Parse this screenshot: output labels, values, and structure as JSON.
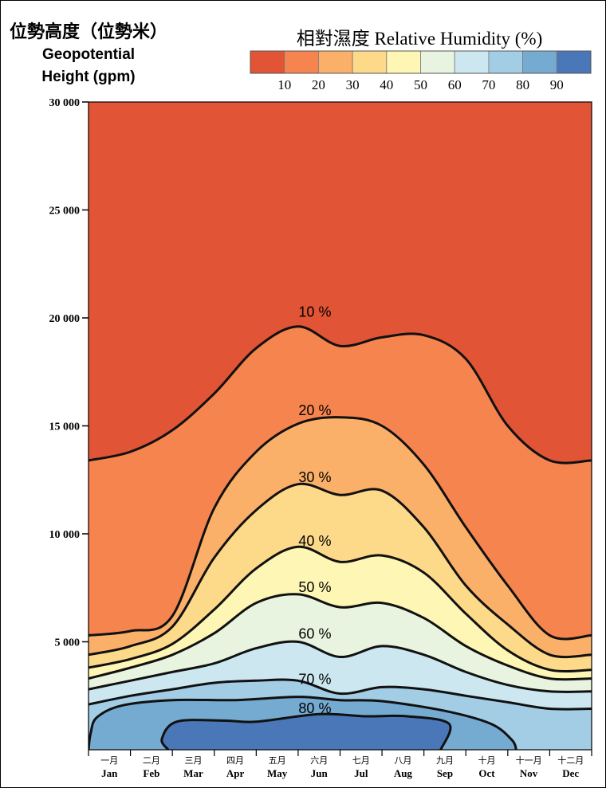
{
  "chart_data": {
    "type": "heatmap",
    "title": "相對濕度 Relative Humidity (%)",
    "ylabel_zh": "位勢高度（位勢米）",
    "ylabel_en_1": "Geopotential",
    "ylabel_en_2": "Height (gpm)",
    "ylim": [
      0,
      30000
    ],
    "y_ticks": [
      {
        "value": 5000,
        "label": "5 000"
      },
      {
        "value": 10000,
        "label": "10 000"
      },
      {
        "value": 15000,
        "label": "15 000"
      },
      {
        "value": 20000,
        "label": "20 000"
      },
      {
        "value": 25000,
        "label": "25 000"
      },
      {
        "value": 30000,
        "label": "30 000"
      }
    ],
    "months": [
      {
        "zh": "一月",
        "en": "Jan"
      },
      {
        "zh": "二月",
        "en": "Feb"
      },
      {
        "zh": "三月",
        "en": "Mar"
      },
      {
        "zh": "四月",
        "en": "Apr"
      },
      {
        "zh": "五月",
        "en": "May"
      },
      {
        "zh": "六月",
        "en": "Jun"
      },
      {
        "zh": "七月",
        "en": "Jul"
      },
      {
        "zh": "八月",
        "en": "Aug"
      },
      {
        "zh": "九月",
        "en": "Sep"
      },
      {
        "zh": "十月",
        "en": "Oct"
      },
      {
        "zh": "十一月",
        "en": "Nov"
      },
      {
        "zh": "十二月",
        "en": "Dec"
      }
    ],
    "x": [
      0,
      1,
      2,
      3,
      4,
      5,
      6,
      7,
      8,
      9,
      10,
      11,
      12
    ],
    "colorbar": {
      "colors": [
        "#e15435",
        "#f6844e",
        "#fbb06a",
        "#fdd98a",
        "#fef6b4",
        "#e9f4e0",
        "#cde7f1",
        "#a2cde4",
        "#75aad1",
        "#4a77b8"
      ],
      "labels": [
        "10",
        "20",
        "30",
        "40",
        "50",
        "60",
        "70",
        "80",
        "90"
      ]
    },
    "contours": [
      {
        "level": 10,
        "label": "10 %",
        "label_pos": [
          5.4,
          20050
        ],
        "y": [
          13400,
          13800,
          14800,
          16500,
          18600,
          19600,
          18700,
          19100,
          19200,
          18100,
          15000,
          13400,
          13400
        ]
      },
      {
        "level": 20,
        "label": "20 %",
        "label_pos": [
          5.4,
          15500
        ],
        "y": [
          5300,
          5500,
          6200,
          11200,
          13800,
          15100,
          15400,
          15000,
          13200,
          10300,
          7600,
          5300,
          5300
        ]
      },
      {
        "level": 30,
        "label": "30 %",
        "label_pos": [
          5.4,
          12400
        ],
        "y": [
          4400,
          4800,
          5700,
          8900,
          11100,
          12300,
          11800,
          12000,
          10300,
          7600,
          5800,
          4400,
          4400
        ]
      },
      {
        "level": 40,
        "label": "40 %",
        "label_pos": [
          5.4,
          9450
        ],
        "y": [
          3800,
          4200,
          4900,
          6500,
          8400,
          9400,
          8700,
          9000,
          8200,
          6300,
          4600,
          3700,
          3700
        ]
      },
      {
        "level": 50,
        "label": "50 %",
        "label_pos": [
          5.4,
          7300
        ],
        "y": [
          3300,
          3800,
          4400,
          5400,
          6800,
          7200,
          6600,
          6800,
          6100,
          4800,
          3900,
          3300,
          3300
        ]
      },
      {
        "level": 60,
        "label": "60 %",
        "label_pos": [
          5.4,
          5150
        ],
        "y": [
          2800,
          3200,
          3600,
          4000,
          4700,
          5000,
          4300,
          4800,
          4400,
          3600,
          3000,
          2700,
          2700
        ]
      },
      {
        "level": 70,
        "label": "70 %",
        "label_pos": [
          5.4,
          3050
        ],
        "y": [
          2100,
          2500,
          2800,
          3100,
          3200,
          3200,
          2600,
          2900,
          2800,
          2500,
          2200,
          1900,
          1900
        ]
      },
      {
        "level": 80,
        "label": "80 %",
        "label_pos": [
          5.4,
          1700
        ],
        "closed": true,
        "pts": [
          [
            0.0,
            0.0
          ],
          [
            0.05,
            750
          ],
          [
            0.2,
            1500
          ],
          [
            0.8,
            2050
          ],
          [
            2.0,
            2300
          ],
          [
            3.5,
            2300
          ],
          [
            5.0,
            2450
          ],
          [
            6.0,
            2300
          ],
          [
            7.0,
            2250
          ],
          [
            8.5,
            1800
          ],
          [
            9.6,
            1200
          ],
          [
            10.1,
            450
          ],
          [
            10.2,
            0
          ]
        ]
      },
      {
        "level": 90,
        "label": "",
        "closed": true,
        "pts": [
          [
            1.9,
            0
          ],
          [
            1.75,
            500
          ],
          [
            2.1,
            1300
          ],
          [
            3.2,
            1350
          ],
          [
            4.0,
            1300
          ],
          [
            5.5,
            1650
          ],
          [
            6.6,
            1550
          ],
          [
            7.6,
            1550
          ],
          [
            8.6,
            1200
          ],
          [
            8.4,
            0
          ]
        ]
      }
    ]
  }
}
